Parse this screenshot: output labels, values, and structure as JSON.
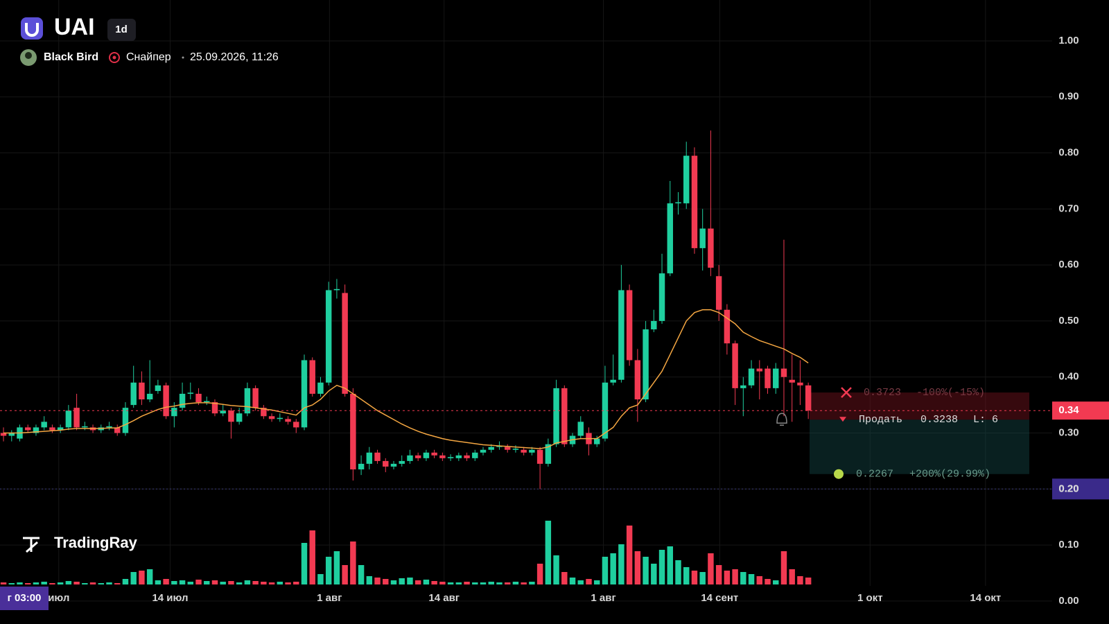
{
  "header": {
    "symbol": "UAI",
    "interval": "1d",
    "author": "Black Bird",
    "strategy": "Снайпер",
    "timestamp": "25.09.2026, 11:26"
  },
  "brand": "TradingRay",
  "crosshair_time": "г 03:00",
  "chart_data": {
    "type": "candlestick",
    "open": [
      0.3,
      0.295,
      0.29,
      0.31,
      0.3,
      0.31,
      0.31,
      0.305,
      0.31,
      0.345,
      0.31,
      0.31,
      0.305,
      0.31,
      0.31,
      0.3,
      0.35,
      0.39,
      0.36,
      0.375,
      0.385,
      0.33,
      0.345,
      0.37,
      0.37,
      0.355,
      0.355,
      0.335,
      0.34,
      0.32,
      0.335,
      0.38,
      0.345,
      0.33,
      0.325,
      0.325,
      0.32,
      0.31,
      0.43,
      0.37,
      0.39,
      0.555,
      0.55,
      0.37,
      0.235,
      0.245,
      0.265,
      0.25,
      0.24,
      0.245,
      0.25,
      0.26,
      0.255,
      0.265,
      0.26,
      0.255,
      0.255,
      0.26,
      0.255,
      0.265,
      0.27,
      0.275,
      0.275,
      0.27,
      0.27,
      0.265,
      0.27,
      0.245,
      0.28,
      0.38,
      0.28,
      0.295,
      0.3,
      0.28,
      0.29,
      0.39,
      0.395,
      0.555,
      0.43,
      0.36,
      0.485,
      0.5,
      0.585,
      0.71,
      0.71,
      0.795,
      0.63,
      0.665,
      0.58,
      0.52,
      0.46,
      0.38,
      0.385,
      0.415,
      0.415,
      0.38,
      0.415,
      0.395,
      0.39,
      0.385
    ],
    "high": [
      0.31,
      0.305,
      0.315,
      0.315,
      0.315,
      0.33,
      0.315,
      0.315,
      0.35,
      0.37,
      0.32,
      0.315,
      0.315,
      0.32,
      0.315,
      0.355,
      0.42,
      0.41,
      0.43,
      0.395,
      0.39,
      0.355,
      0.39,
      0.39,
      0.38,
      0.365,
      0.36,
      0.35,
      0.345,
      0.345,
      0.39,
      0.385,
      0.35,
      0.335,
      0.335,
      0.33,
      0.325,
      0.44,
      0.435,
      0.4,
      0.57,
      0.575,
      0.565,
      0.38,
      0.26,
      0.275,
      0.27,
      0.255,
      0.25,
      0.26,
      0.27,
      0.265,
      0.27,
      0.27,
      0.265,
      0.262,
      0.265,
      0.265,
      0.27,
      0.275,
      0.28,
      0.285,
      0.28,
      0.278,
      0.275,
      0.275,
      0.275,
      0.29,
      0.395,
      0.385,
      0.3,
      0.33,
      0.31,
      0.295,
      0.42,
      0.44,
      0.6,
      0.565,
      0.45,
      0.5,
      0.52,
      0.62,
      0.75,
      0.73,
      0.82,
      0.81,
      0.7,
      0.84,
      0.6,
      0.53,
      0.465,
      0.4,
      0.43,
      0.43,
      0.42,
      0.425,
      0.645,
      0.44,
      0.43,
      0.39
    ],
    "low": [
      0.285,
      0.285,
      0.285,
      0.3,
      0.295,
      0.305,
      0.3,
      0.3,
      0.305,
      0.305,
      0.305,
      0.3,
      0.3,
      0.305,
      0.295,
      0.295,
      0.345,
      0.35,
      0.355,
      0.37,
      0.325,
      0.31,
      0.34,
      0.36,
      0.35,
      0.35,
      0.33,
      0.33,
      0.29,
      0.315,
      0.33,
      0.34,
      0.325,
      0.32,
      0.32,
      0.315,
      0.3,
      0.305,
      0.365,
      0.365,
      0.385,
      0.54,
      0.365,
      0.215,
      0.225,
      0.235,
      0.245,
      0.23,
      0.235,
      0.24,
      0.245,
      0.25,
      0.25,
      0.255,
      0.25,
      0.25,
      0.25,
      0.25,
      0.25,
      0.26,
      0.265,
      0.27,
      0.265,
      0.265,
      0.26,
      0.26,
      0.2,
      0.24,
      0.275,
      0.275,
      0.275,
      0.29,
      0.26,
      0.275,
      0.285,
      0.385,
      0.39,
      0.42,
      0.32,
      0.355,
      0.48,
      0.495,
      0.58,
      0.69,
      0.7,
      0.62,
      0.59,
      0.58,
      0.5,
      0.44,
      0.35,
      0.33,
      0.38,
      0.36,
      0.37,
      0.37,
      0.33,
      0.32,
      0.35,
      0.325
    ],
    "close": [
      0.295,
      0.3,
      0.31,
      0.305,
      0.31,
      0.32,
      0.305,
      0.31,
      0.34,
      0.31,
      0.312,
      0.305,
      0.31,
      0.312,
      0.3,
      0.345,
      0.39,
      0.36,
      0.37,
      0.385,
      0.33,
      0.345,
      0.37,
      0.372,
      0.355,
      0.357,
      0.335,
      0.34,
      0.32,
      0.335,
      0.38,
      0.345,
      0.33,
      0.325,
      0.327,
      0.32,
      0.31,
      0.43,
      0.37,
      0.39,
      0.555,
      0.557,
      0.37,
      0.235,
      0.245,
      0.265,
      0.25,
      0.24,
      0.245,
      0.25,
      0.26,
      0.255,
      0.265,
      0.26,
      0.255,
      0.257,
      0.26,
      0.255,
      0.265,
      0.27,
      0.275,
      0.277,
      0.27,
      0.272,
      0.265,
      0.27,
      0.245,
      0.28,
      0.38,
      0.28,
      0.295,
      0.32,
      0.28,
      0.29,
      0.39,
      0.395,
      0.555,
      0.43,
      0.36,
      0.485,
      0.5,
      0.585,
      0.71,
      0.712,
      0.795,
      0.63,
      0.665,
      0.595,
      0.52,
      0.46,
      0.38,
      0.385,
      0.415,
      0.41,
      0.38,
      0.415,
      0.4,
      0.39,
      0.385,
      0.34
    ],
    "volume": [
      3,
      2,
      3,
      2,
      3,
      4,
      2,
      3,
      5,
      4,
      2,
      3,
      2,
      3,
      2,
      8,
      18,
      20,
      22,
      6,
      8,
      5,
      6,
      4,
      7,
      5,
      6,
      4,
      5,
      3,
      6,
      5,
      4,
      3,
      4,
      3,
      4,
      60,
      78,
      15,
      40,
      48,
      28,
      62,
      28,
      12,
      10,
      8,
      6,
      9,
      10,
      6,
      7,
      5,
      4,
      3,
      3,
      4,
      3,
      3,
      4,
      3,
      3,
      4,
      3,
      4,
      30,
      92,
      42,
      18,
      10,
      6,
      8,
      6,
      40,
      45,
      58,
      85,
      48,
      40,
      30,
      50,
      55,
      35,
      25,
      20,
      18,
      45,
      28,
      20,
      22,
      18,
      15,
      12,
      8,
      6,
      48,
      22,
      12,
      10
    ],
    "ma": [
      0.3,
      0.3,
      0.3,
      0.301,
      0.302,
      0.303,
      0.304,
      0.305,
      0.307,
      0.308,
      0.308,
      0.308,
      0.308,
      0.309,
      0.309,
      0.315,
      0.322,
      0.33,
      0.336,
      0.342,
      0.346,
      0.348,
      0.351,
      0.353,
      0.354,
      0.354,
      0.353,
      0.351,
      0.349,
      0.348,
      0.347,
      0.345,
      0.343,
      0.341,
      0.338,
      0.335,
      0.332,
      0.345,
      0.35,
      0.36,
      0.375,
      0.385,
      0.38,
      0.37,
      0.36,
      0.35,
      0.34,
      0.332,
      0.324,
      0.316,
      0.309,
      0.303,
      0.298,
      0.294,
      0.29,
      0.287,
      0.285,
      0.283,
      0.281,
      0.279,
      0.278,
      0.277,
      0.276,
      0.275,
      0.274,
      0.273,
      0.272,
      0.275,
      0.282,
      0.285,
      0.288,
      0.29,
      0.29,
      0.29,
      0.3,
      0.31,
      0.33,
      0.345,
      0.35,
      0.37,
      0.39,
      0.41,
      0.44,
      0.47,
      0.5,
      0.515,
      0.52,
      0.52,
      0.515,
      0.505,
      0.495,
      0.48,
      0.472,
      0.465,
      0.46,
      0.455,
      0.45,
      0.442,
      0.435,
      0.425
    ],
    "up_color": "#1fcf9f",
    "down_color": "#f23a52",
    "ma_color": "#f5a742",
    "xlim": [
      -0.43,
      129.0
    ],
    "xticks": [
      {
        "value": 6.8,
        "label": "июл"
      },
      {
        "value": 20.5,
        "label": "14 июл"
      },
      {
        "value": 40.1,
        "label": "1 авг"
      },
      {
        "value": 54.2,
        "label": "14 авг"
      },
      {
        "value": 73.8,
        "label": "1 авг"
      },
      {
        "value": 88.1,
        "label": "14 сент"
      },
      {
        "value": 106.6,
        "label": "1 окт"
      },
      {
        "value": 120.8,
        "label": "14 окт"
      }
    ],
    "ylim": [
      -0.041,
      1.073
    ],
    "yticks": [
      {
        "value": 0,
        "label": "0.00"
      },
      {
        "value": 0.1,
        "label": "0.10"
      },
      {
        "value": 0.2,
        "label": "0.20"
      },
      {
        "value": 0.3,
        "label": "0.30"
      },
      {
        "value": 0.4,
        "label": "0.40"
      },
      {
        "value": 0.5,
        "label": "0.50"
      },
      {
        "value": 0.6,
        "label": "0.60"
      },
      {
        "value": 0.7,
        "label": "0.70"
      },
      {
        "value": 0.8,
        "label": "0.80"
      },
      {
        "value": 0.9,
        "label": "0.90"
      },
      {
        "value": 1.0,
        "label": "1.00"
      }
    ],
    "grid": true,
    "last_price": {
      "value": 0.34,
      "label": "0.34"
    },
    "marker_price": {
      "value": 0.2,
      "label": "0.20"
    },
    "order": {
      "side": "Продать",
      "price": 0.3238,
      "lots": "L: 6"
    },
    "stop": {
      "price": 0.3723,
      "change": "-100%(-15%)"
    },
    "target": {
      "price": 0.2267,
      "change": "+200%(29.99%)"
    }
  }
}
